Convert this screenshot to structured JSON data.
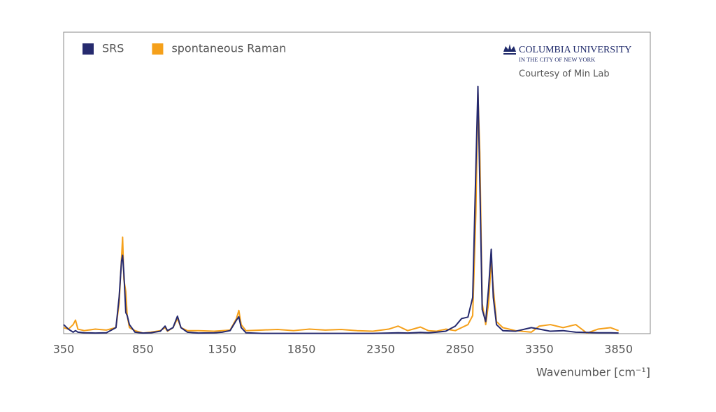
{
  "chart_data": {
    "type": "line",
    "x_label": "Wavenumber [cm⁻¹]",
    "annotations": [
      "COLUMBIA UNIVERSITY",
      "IN THE CITY OF NEW YORK",
      "Courtesy of Min Lab"
    ],
    "legend": "upper left",
    "xlim": [
      350,
      4050
    ],
    "ylim": [
      0,
      1
    ],
    "xticks": [
      350,
      850,
      1350,
      1850,
      2350,
      2850,
      3350,
      3850
    ],
    "x": [
      350,
      380,
      410,
      425,
      440,
      480,
      550,
      620,
      680,
      700,
      715,
      722,
      730,
      742,
      751,
      765,
      800,
      850,
      900,
      960,
      990,
      1005,
      1040,
      1068,
      1090,
      1130,
      1200,
      1300,
      1350,
      1400,
      1440,
      1455,
      1470,
      1500,
      1600,
      1700,
      1800,
      1900,
      2000,
      2100,
      2200,
      2300,
      2400,
      2460,
      2520,
      2600,
      2650,
      2700,
      2760,
      2820,
      2860,
      2900,
      2930,
      2950,
      2963,
      2975,
      2990,
      3012,
      3030,
      3047,
      3060,
      3080,
      3120,
      3200,
      3300,
      3350,
      3420,
      3500,
      3580,
      3650,
      3720,
      3800,
      3850
    ],
    "series": [
      {
        "name": "SRS",
        "color": "#262a6e",
        "values": [
          0.03,
          0.015,
          0.005,
          0.01,
          0.005,
          0.003,
          0.002,
          0.003,
          0.02,
          0.12,
          0.24,
          0.26,
          0.2,
          0.07,
          0.06,
          0.03,
          0.005,
          0.002,
          0.003,
          0.008,
          0.025,
          0.01,
          0.02,
          0.058,
          0.02,
          0.005,
          0.002,
          0.003,
          0.005,
          0.01,
          0.045,
          0.056,
          0.02,
          0.003,
          0.001,
          0.001,
          0.001,
          0.001,
          0.001,
          0.001,
          0.001,
          0.001,
          0.002,
          0.003,
          0.002,
          0.004,
          0.003,
          0.005,
          0.008,
          0.025,
          0.05,
          0.055,
          0.12,
          0.55,
          0.82,
          0.5,
          0.08,
          0.04,
          0.15,
          0.28,
          0.12,
          0.03,
          0.01,
          0.008,
          0.02,
          0.015,
          0.008,
          0.01,
          0.005,
          0.004,
          0.003,
          0.003,
          0.002
        ]
      },
      {
        "name": "spontaneous Raman",
        "color": "#f5a01a",
        "values": [
          0.02,
          0.015,
          0.03,
          0.045,
          0.015,
          0.01,
          0.015,
          0.012,
          0.02,
          0.1,
          0.25,
          0.32,
          0.18,
          0.14,
          0.06,
          0.02,
          0.01,
          0.002,
          0.005,
          0.01,
          0.02,
          0.008,
          0.02,
          0.05,
          0.02,
          0.01,
          0.01,
          0.008,
          0.01,
          0.012,
          0.05,
          0.077,
          0.03,
          0.01,
          0.012,
          0.014,
          0.01,
          0.015,
          0.012,
          0.014,
          0.01,
          0.008,
          0.015,
          0.025,
          0.01,
          0.022,
          0.01,
          0.008,
          0.015,
          0.01,
          0.02,
          0.03,
          0.06,
          0.4,
          0.8,
          0.6,
          0.1,
          0.03,
          0.1,
          0.24,
          0.15,
          0.04,
          0.02,
          0.01,
          0.005,
          0.025,
          0.03,
          0.02,
          0.03,
          0.002,
          0.015,
          0.02,
          0.01
        ]
      }
    ]
  }
}
